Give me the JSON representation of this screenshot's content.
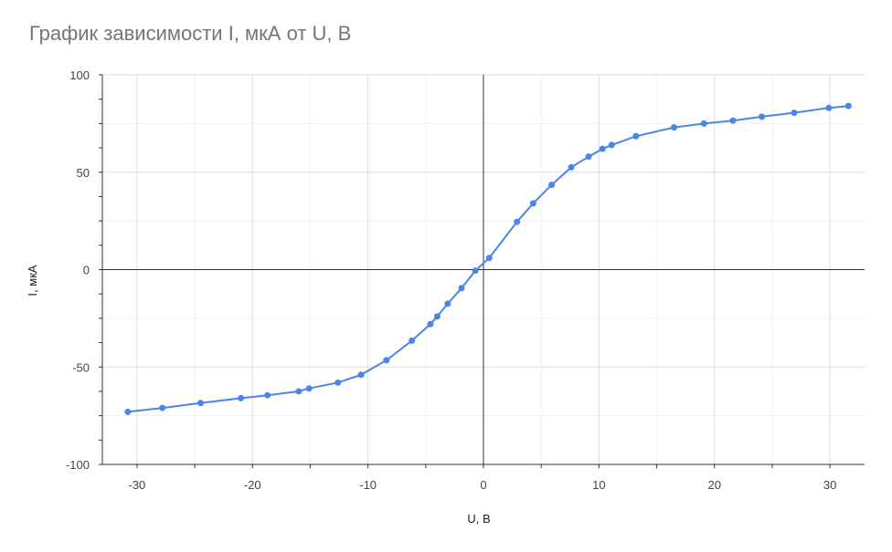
{
  "chart_data": {
    "type": "line",
    "title": "График зависимости I, мкА от U, В",
    "xlabel": "U, В",
    "ylabel": "I, мкА",
    "xlim": [
      -33,
      33
    ],
    "ylim": [
      -100,
      100
    ],
    "xticks": [
      -30,
      -20,
      -10,
      0,
      10,
      20,
      30
    ],
    "xtick_labels": [
      "-30",
      "-20",
      "-10",
      "0",
      "10",
      "20",
      "30"
    ],
    "yticks": [
      -100,
      -50,
      0,
      50,
      100
    ],
    "ytick_labels": [
      "-100",
      "-50",
      "0",
      "50",
      "100"
    ],
    "grid": true,
    "color": "#4a86e8",
    "series": [
      {
        "x": [
          -30.8,
          -27.8,
          -24.5,
          -21.0,
          -18.7,
          -16.0,
          -15.1,
          -12.6,
          -10.6,
          -8.4,
          -6.2,
          -4.6,
          -4.0,
          -3.1,
          -1.9,
          -0.7,
          0.5,
          2.9,
          4.3,
          5.9,
          7.6,
          9.1,
          10.3,
          11.1,
          13.2,
          16.5,
          19.1,
          21.6,
          24.1,
          26.9,
          29.9,
          31.6
        ],
        "y": [
          -73,
          -71,
          -68.5,
          -66,
          -64.5,
          -62.5,
          -61,
          -58,
          -54,
          -46.5,
          -36.5,
          -28,
          -24,
          -17.5,
          -9.5,
          -0.5,
          6,
          24.5,
          34,
          43.5,
          52.5,
          58,
          62,
          64,
          68.5,
          73,
          75,
          76.5,
          78.5,
          80.5,
          83,
          84
        ]
      }
    ]
  }
}
